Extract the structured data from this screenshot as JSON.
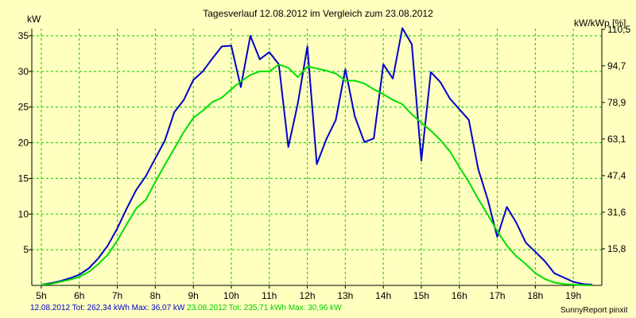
{
  "chart_data": {
    "type": "line",
    "title": "Tagesverlauf 12.08.2012 im Vergleich zum 23.08.2012",
    "ylabel": "kW",
    "y2label": "kW/kWp [%]",
    "ylim": [
      0,
      36
    ],
    "xlim": [
      4.75,
      19.75
    ],
    "x_ticks": [
      5,
      6,
      7,
      8,
      9,
      10,
      11,
      12,
      13,
      14,
      15,
      16,
      17,
      18,
      19
    ],
    "x_tick_labels": [
      "5h",
      "6h",
      "7h",
      "8h",
      "9h",
      "10h",
      "11h",
      "12h",
      "13h",
      "14h",
      "15h",
      "16h",
      "17h",
      "18h",
      "19h"
    ],
    "y_ticks": [
      5,
      10,
      15,
      20,
      25,
      30,
      35
    ],
    "y_tick_labels": [
      "5",
      "10",
      "15",
      "20",
      "25",
      "30",
      "35"
    ],
    "y2_ticks": [
      5.13,
      10.26,
      15.39,
      20.52,
      25.65,
      30.78,
      35.9
    ],
    "y2_tick_labels": [
      "15,8",
      "31,6",
      "47,4",
      "63,1",
      "78,9",
      "94,7",
      "110,5"
    ],
    "grid": true,
    "series": [
      {
        "name": "12.08.2012",
        "color": "#0000cc",
        "x": [
          5.0,
          5.25,
          5.5,
          5.75,
          6.0,
          6.25,
          6.5,
          6.75,
          7.0,
          7.25,
          7.5,
          7.75,
          8.0,
          8.25,
          8.5,
          8.75,
          9.0,
          9.25,
          9.5,
          9.75,
          10.0,
          10.25,
          10.5,
          10.75,
          11.0,
          11.25,
          11.5,
          11.75,
          12.0,
          12.25,
          12.5,
          12.75,
          13.0,
          13.25,
          13.5,
          13.75,
          14.0,
          14.25,
          14.5,
          14.75,
          15.0,
          15.25,
          15.5,
          15.75,
          16.0,
          16.25,
          16.5,
          16.75,
          17.0,
          17.25,
          17.5,
          17.75,
          18.0,
          18.25,
          18.5,
          18.75,
          19.0,
          19.25,
          19.5
        ],
        "values": [
          0.1,
          0.3,
          0.6,
          1.0,
          1.5,
          2.4,
          3.8,
          5.6,
          8.0,
          10.8,
          13.4,
          15.3,
          17.8,
          20.3,
          24.3,
          26.0,
          28.8,
          30.0,
          31.8,
          33.5,
          33.6,
          27.8,
          35.0,
          31.7,
          32.7,
          31.0,
          19.4,
          25.5,
          33.5,
          17.0,
          20.5,
          23.2,
          30.3,
          23.7,
          20.1,
          20.6,
          31.0,
          29.0,
          36.07,
          33.8,
          17.5,
          29.9,
          28.5,
          26.2,
          24.7,
          23.2,
          16.3,
          12.0,
          6.8,
          11.0,
          8.8,
          6.0,
          4.7,
          3.4,
          1.7,
          1.1,
          0.5,
          0.2,
          0.1
        ]
      },
      {
        "name": "23.08.2012",
        "color": "#00dd00",
        "x": [
          5.0,
          5.25,
          5.5,
          5.75,
          6.0,
          6.25,
          6.5,
          6.75,
          7.0,
          7.25,
          7.5,
          7.75,
          8.0,
          8.25,
          8.5,
          8.75,
          9.0,
          9.25,
          9.5,
          9.75,
          10.0,
          10.25,
          10.5,
          10.75,
          11.0,
          11.25,
          11.5,
          11.75,
          12.0,
          12.25,
          12.5,
          12.75,
          13.0,
          13.25,
          13.5,
          13.75,
          14.0,
          14.25,
          14.5,
          14.75,
          15.0,
          15.25,
          15.5,
          15.75,
          16.0,
          16.25,
          16.5,
          16.75,
          17.0,
          17.25,
          17.5,
          17.75,
          18.0,
          18.25,
          18.5,
          18.75,
          19.0,
          19.25,
          19.5
        ],
        "values": [
          0.1,
          0.2,
          0.5,
          0.8,
          1.2,
          1.9,
          3.0,
          4.3,
          6.3,
          8.6,
          10.8,
          12.0,
          14.5,
          16.9,
          19.2,
          21.5,
          23.5,
          24.5,
          25.7,
          26.3,
          27.5,
          28.6,
          29.5,
          30.0,
          30.0,
          30.96,
          30.5,
          29.2,
          30.7,
          30.4,
          30.1,
          29.7,
          28.7,
          28.7,
          28.3,
          27.5,
          26.8,
          26.0,
          25.4,
          24.0,
          22.8,
          21.7,
          20.4,
          18.8,
          16.6,
          14.5,
          12.1,
          9.9,
          7.6,
          5.6,
          4.1,
          3.0,
          1.7,
          0.9,
          0.4,
          0.2,
          0.1,
          0.05,
          0.0
        ]
      }
    ]
  },
  "footer": {
    "series1_summary": "12.08.2012 Tot: 262,34 kWh Max: 36,07 kW",
    "series2_summary": "23.08.2012 Tot: 235,71 kWh Max: 30,96 kW",
    "credit": "SunnyReport pinxit"
  }
}
